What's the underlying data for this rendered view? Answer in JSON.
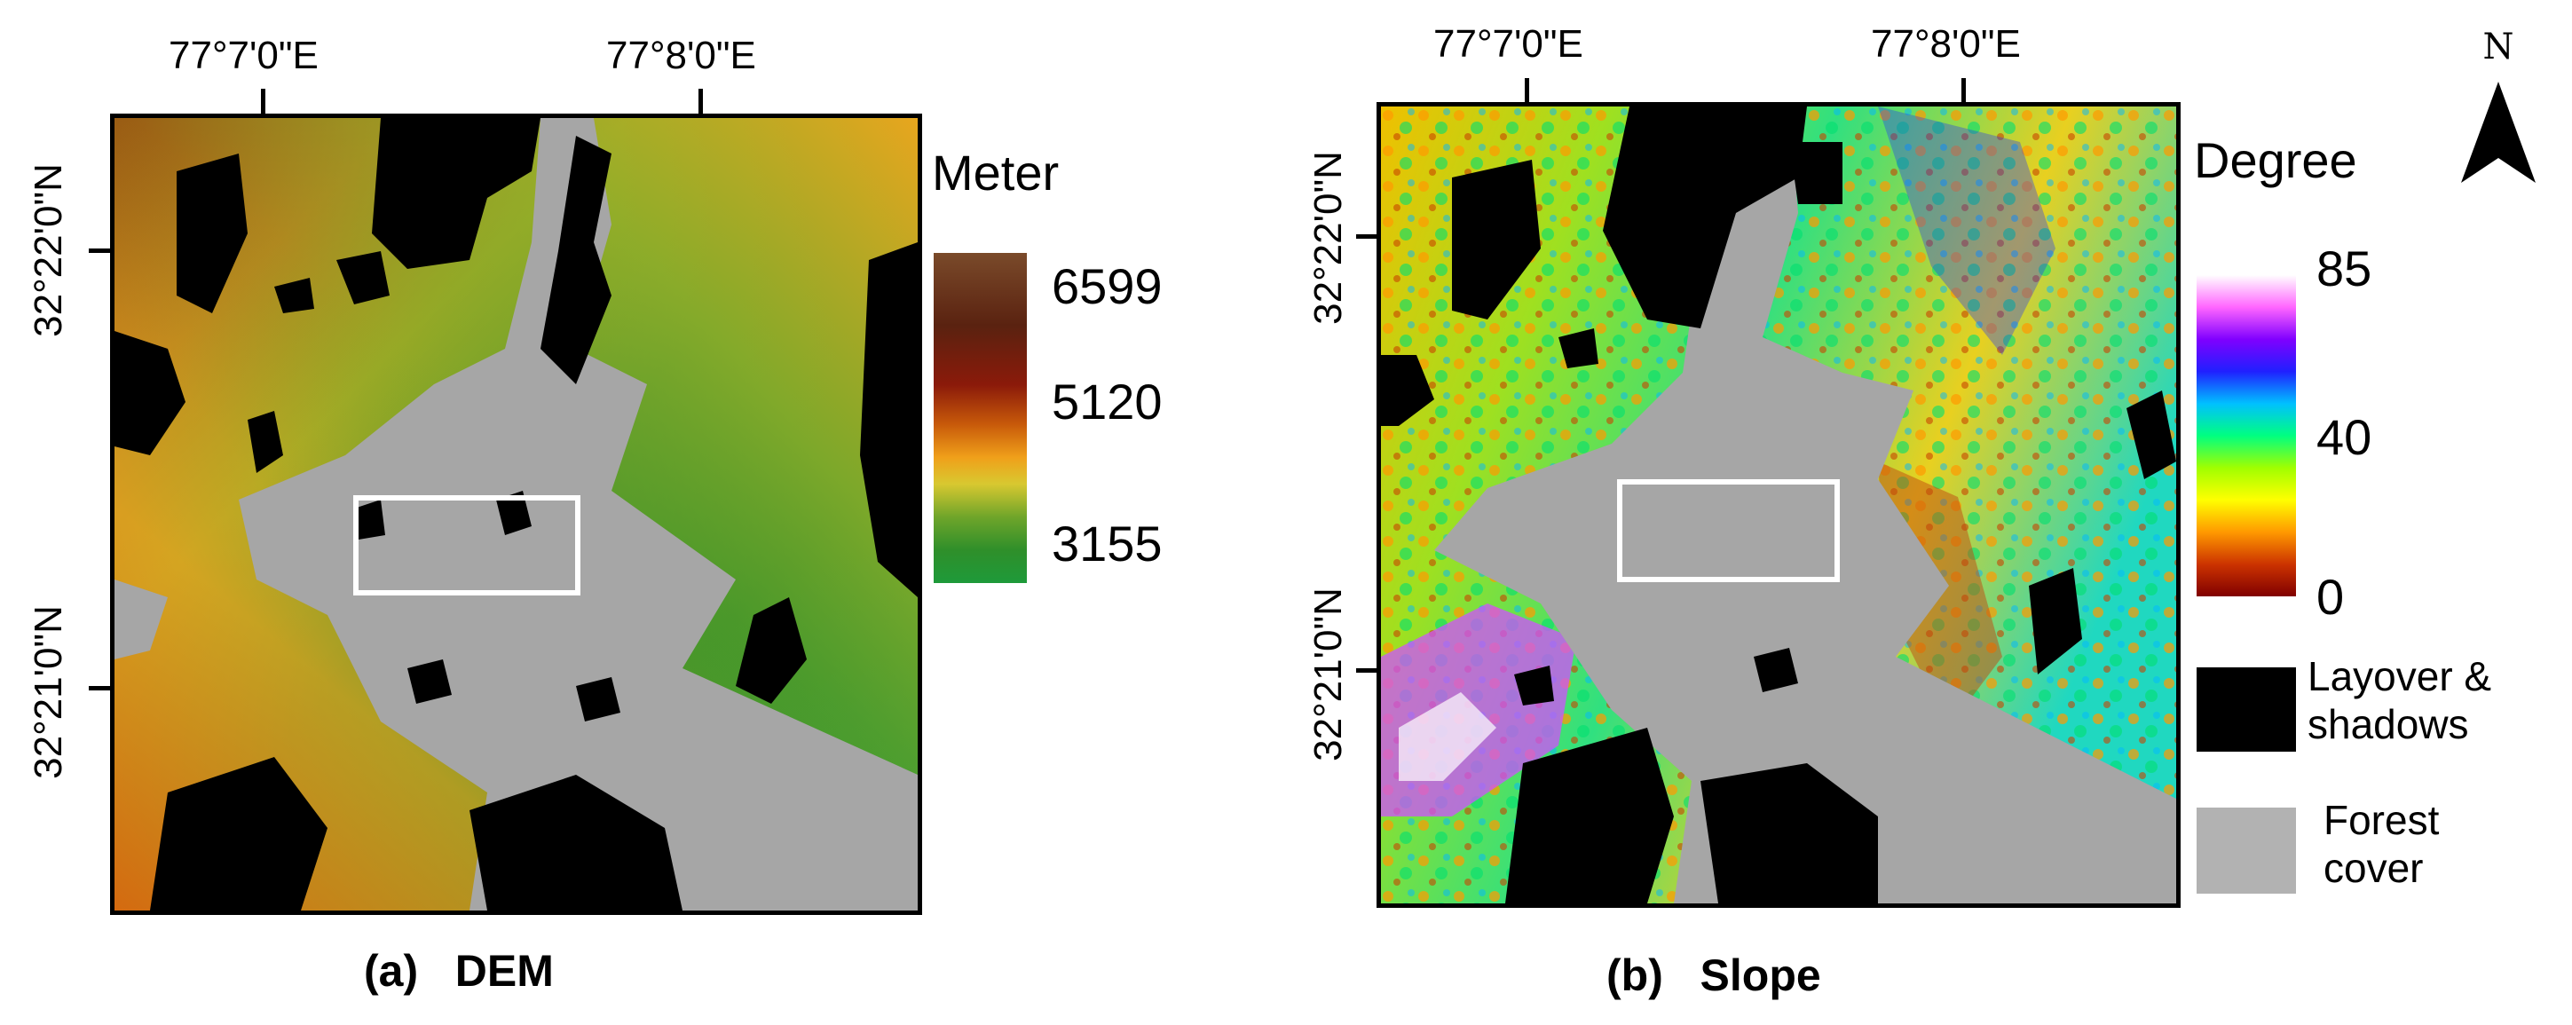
{
  "panels": [
    {
      "caption_letter": "(a)",
      "caption_title": "DEM",
      "top_ticks": [
        "77°7'0\"E",
        "77°8'0\"E"
      ],
      "side_ticks": [
        "32°22'0\"N",
        "32°21'0\"N"
      ],
      "legend": {
        "title": "Meter",
        "values": [
          "6599",
          "5120",
          "3155"
        ],
        "ramp_colors": [
          "#7a4a2a",
          "#5a2210",
          "#8b1a0a",
          "#c85a0a",
          "#f0a01a",
          "#d8c830",
          "#6fa52a",
          "#2f8f2a",
          "#1e9a3a"
        ]
      }
    },
    {
      "caption_letter": "(b)",
      "caption_title": "Slope",
      "top_ticks": [
        "77°7'0\"E",
        "77°8'0\"E"
      ],
      "side_ticks": [
        "32°22'0\"N",
        "32°21'0\"N"
      ],
      "legend": {
        "title": "Degree",
        "values": [
          "85",
          "40",
          "0"
        ],
        "ramp_colors": [
          "#ffffff",
          "#ff66ff",
          "#8000ff",
          "#2020ff",
          "#00c0ff",
          "#00ff80",
          "#a0ff00",
          "#ffff00",
          "#ff9900",
          "#cc3300",
          "#800000"
        ]
      },
      "classes": [
        {
          "label_line1": "Layover &",
          "label_line2": "shadows",
          "color": "#000000"
        },
        {
          "label_line1": "Forest",
          "label_line2": "cover",
          "color": "#b2b2b2"
        }
      ]
    }
  ],
  "north_arrow": {
    "label": "N"
  },
  "colors": {
    "forest": "#a8a8a8",
    "shadow": "#000000",
    "roi": "#ffffff"
  }
}
